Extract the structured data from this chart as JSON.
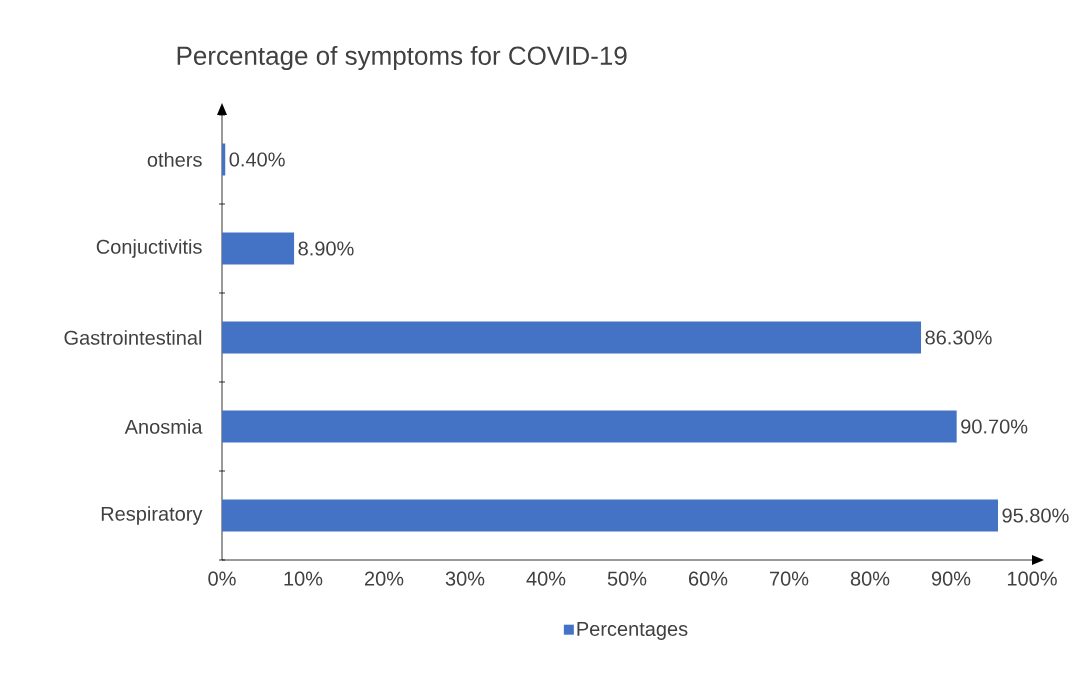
{
  "chart_data": {
    "type": "bar",
    "orientation": "horizontal",
    "title": "Percentage of symptoms for COVID-19",
    "categories": [
      "others",
      "Conjuctivitis",
      "Gastrointestinal",
      "Anosmia",
      "Respiratory"
    ],
    "series": [
      {
        "name": "Percentages",
        "color": "#4472c4",
        "values": [
          0.4,
          8.9,
          86.3,
          90.7,
          95.8
        ],
        "value_labels": [
          "0.40%",
          "8.90%",
          "86.30%",
          "90.70%",
          "95.80%"
        ]
      }
    ],
    "xlim": [
      0,
      100
    ],
    "xticks": [
      {
        "value": 0,
        "label": "0%"
      },
      {
        "value": 10,
        "label": "10%"
      },
      {
        "value": 20,
        "label": "20%"
      },
      {
        "value": 30,
        "label": "30%"
      },
      {
        "value": 40,
        "label": "40%"
      },
      {
        "value": 50,
        "label": "50%"
      },
      {
        "value": 60,
        "label": "60%"
      },
      {
        "value": 70,
        "label": "70%"
      },
      {
        "value": 80,
        "label": "80%"
      },
      {
        "value": 90,
        "label": "90%"
      },
      {
        "value": 100,
        "label": "100%"
      }
    ],
    "grid": false,
    "legend": "bottom"
  }
}
